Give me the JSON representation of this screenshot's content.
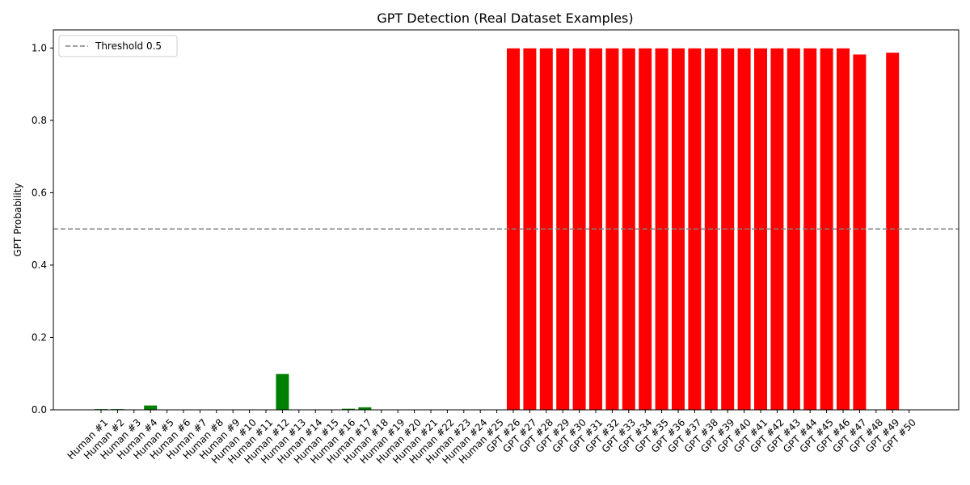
{
  "chart_data": {
    "type": "bar",
    "title": "GPT Detection (Real Dataset Examples)",
    "xlabel": "",
    "ylabel": "GPT Probability",
    "ylim": [
      0,
      1.05
    ],
    "yticks": [
      0.0,
      0.2,
      0.4,
      0.6,
      0.8,
      1.0
    ],
    "ytick_labels": [
      "0.0",
      "0.2",
      "0.4",
      "0.6",
      "0.8",
      "1.0"
    ],
    "grid": false,
    "legend_position": "top-left",
    "threshold": {
      "value": 0.5,
      "label": "Threshold 0.5",
      "color": "#808080",
      "style": "dashed"
    },
    "colors": {
      "human": "#008000",
      "gpt": "#ff0000"
    },
    "categories": [
      "Human #1",
      "Human #2",
      "Human #3",
      "Human #4",
      "Human #5",
      "Human #6",
      "Human #7",
      "Human #8",
      "Human #9",
      "Human #10",
      "Human #11",
      "Human #12",
      "Human #13",
      "Human #14",
      "Human #15",
      "Human #16",
      "Human #17",
      "Human #18",
      "Human #19",
      "Human #20",
      "Human #21",
      "Human #22",
      "Human #23",
      "Human #24",
      "Human #25",
      "GPT #26",
      "GPT #27",
      "GPT #28",
      "GPT #29",
      "GPT #30",
      "GPT #31",
      "GPT #32",
      "GPT #33",
      "GPT #34",
      "GPT #35",
      "GPT #36",
      "GPT #37",
      "GPT #38",
      "GPT #39",
      "GPT #40",
      "GPT #41",
      "GPT #42",
      "GPT #43",
      "GPT #44",
      "GPT #45",
      "GPT #46",
      "GPT #47",
      "GPT #48",
      "GPT #49",
      "GPT #50"
    ],
    "groups": [
      "human",
      "human",
      "human",
      "human",
      "human",
      "human",
      "human",
      "human",
      "human",
      "human",
      "human",
      "human",
      "human",
      "human",
      "human",
      "human",
      "human",
      "human",
      "human",
      "human",
      "human",
      "human",
      "human",
      "human",
      "human",
      "gpt",
      "gpt",
      "gpt",
      "gpt",
      "gpt",
      "gpt",
      "gpt",
      "gpt",
      "gpt",
      "gpt",
      "gpt",
      "gpt",
      "gpt",
      "gpt",
      "gpt",
      "gpt",
      "gpt",
      "gpt",
      "gpt",
      "gpt",
      "gpt",
      "gpt",
      "gpt",
      "gpt",
      "gpt"
    ],
    "values": [
      0.002,
      0.002,
      0.0005,
      0.012,
      0.0005,
      0.0005,
      0.0005,
      0.0005,
      0.0005,
      0.0005,
      0.0005,
      0.099,
      0.0005,
      0.0005,
      0.0005,
      0.003,
      0.007,
      0.0005,
      0.0005,
      0.0005,
      0.0005,
      0.0005,
      0.0005,
      0.0005,
      0.0005,
      0.999,
      0.999,
      0.999,
      0.999,
      0.999,
      0.999,
      0.999,
      0.999,
      0.999,
      0.999,
      0.999,
      0.999,
      0.999,
      0.999,
      0.999,
      0.999,
      0.999,
      0.999,
      0.999,
      0.999,
      0.999,
      0.982,
      0.0005,
      0.987,
      0.0005
    ]
  }
}
